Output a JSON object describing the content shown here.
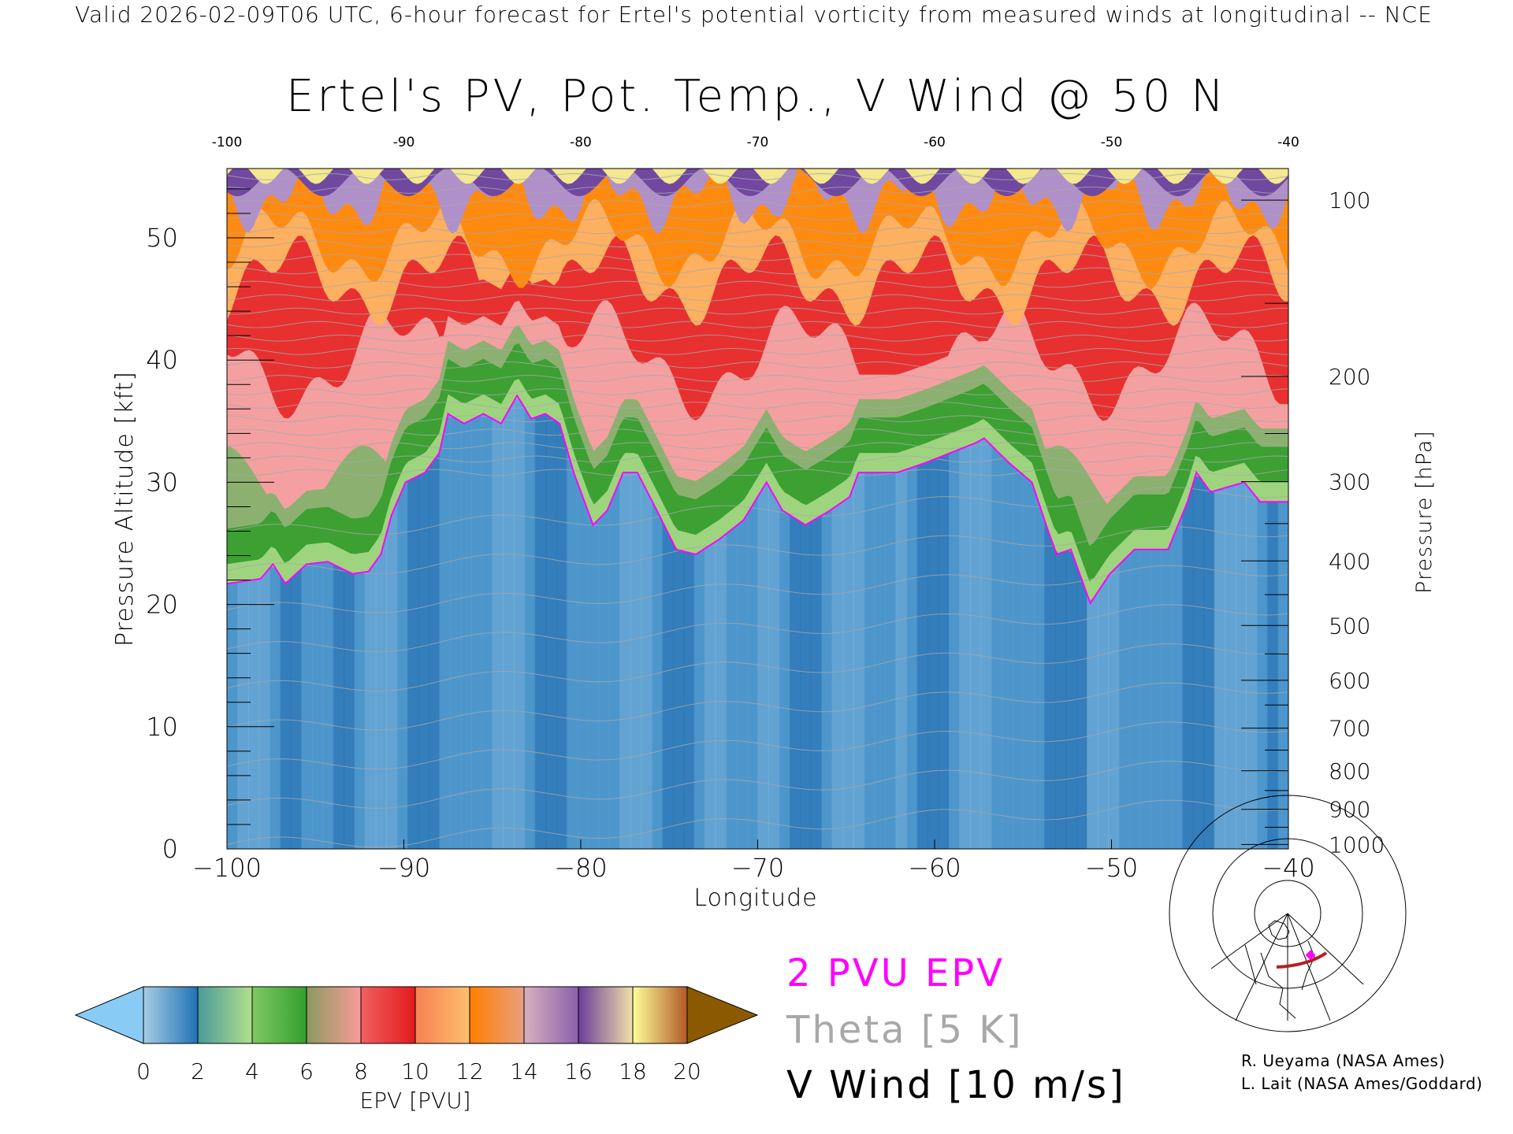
{
  "header": {
    "top_title": "Valid 2026-02-09T06 UTC, 6-hour forecast for Ertel's potential vorticity from measured winds at longitudinal -- NCE",
    "main_title": "Ertel's PV, Pot. Temp., V Wind @ 50 N"
  },
  "legend": {
    "pvu_label": "2 PVU EPV",
    "theta_label": "Theta [5 K]",
    "wind_label": "V Wind [10 m/s]"
  },
  "credits": [
    "R. Ueyama (NASA Ames)",
    "L. Lait (NASA Ames/Goddard)"
  ],
  "colors": {
    "pvu_line": "#ff00ff",
    "theta_line": "#a8a8a8",
    "wind_line": "#000000",
    "track": "#b22222"
  },
  "chart_data": {
    "type": "heatmap",
    "title": "Ertel's PV, Pot. Temp., V Wind @ 50 N",
    "xlabel": "Longitude",
    "ylabel": "Pressure Altitude [kft]",
    "y2label": "Pressure [hPa]",
    "xlim": [
      -100,
      -40
    ],
    "ylim": [
      0,
      55.7
    ],
    "x_ticks": [
      -100,
      -90,
      -80,
      -70,
      -60,
      -50,
      -40
    ],
    "x_tick_labels": [
      "−100",
      "−90",
      "−80",
      "−70",
      "−60",
      "−50",
      "−40"
    ],
    "y_ticks": [
      0,
      10,
      20,
      30,
      40,
      50
    ],
    "y2_ticks": [
      100,
      200,
      300,
      400,
      500,
      600,
      700,
      800,
      900,
      1000
    ],
    "colorbar": {
      "label": "EPV [PVU]",
      "levels": [
        0,
        2,
        4,
        6,
        8,
        10,
        12,
        14,
        16,
        18,
        20
      ],
      "tick_labels": [
        "0",
        "2",
        "4",
        "6",
        "8",
        "10",
        "12",
        "14",
        "16",
        "18",
        "20"
      ],
      "under_color": "#88ccf5",
      "over_color": "#8b5a00",
      "bands": [
        [
          "#a6cee3",
          "#2171b5"
        ],
        [
          "#4a9a9a",
          "#b2df8a"
        ],
        [
          "#80c865",
          "#33a02c"
        ],
        [
          "#8a9a60",
          "#fb9a99"
        ],
        [
          "#f06060",
          "#e31a1c"
        ],
        [
          "#f88050",
          "#fdbf6f"
        ],
        [
          "#ff7f00",
          "#e8a080"
        ],
        [
          "#d8b0c0",
          "#8a60aa"
        ],
        [
          "#6a3d9a",
          "#f0e0a8"
        ],
        [
          "#ffff99",
          "#b15928"
        ]
      ]
    },
    "tropopause_2pvu": {
      "name": "2 PVU EPV",
      "lon": [
        -100,
        -98.1,
        -97.4,
        -96.7,
        -95.5,
        -94.3,
        -92.9,
        -92.0,
        -91.3,
        -90.7,
        -89.9,
        -88.8,
        -88.0,
        -87.5,
        -86.6,
        -85.5,
        -84.5,
        -83.6,
        -82.8,
        -82.0,
        -81.2,
        -80.4,
        -79.3,
        -78.5,
        -77.6,
        -76.8,
        -75.7,
        -74.6,
        -73.5,
        -72.2,
        -70.8,
        -69.5,
        -68.6,
        -67.3,
        -65.9,
        -64.8,
        -64.3,
        -62.1,
        -60.5,
        -57.7,
        -57.2,
        -55.8,
        -54.5,
        -53.6,
        -53.1,
        -52.3,
        -51.2,
        -50.1,
        -48.7,
        -46.8,
        -45.7,
        -45.2,
        -44.4,
        -42.5,
        -41.6,
        -40
      ],
      "kft": [
        21.7,
        22.1,
        23.3,
        21.7,
        23.3,
        23.5,
        22.5,
        22.7,
        24.1,
        27.3,
        30.0,
        30.8,
        32.4,
        35.6,
        34.8,
        35.6,
        34.8,
        37.1,
        35.2,
        35.6,
        34.8,
        30.8,
        26.5,
        27.7,
        30.8,
        30.8,
        27.7,
        24.5,
        24.1,
        25.3,
        26.9,
        30.0,
        27.7,
        26.5,
        27.7,
        28.8,
        30.8,
        30.8,
        31.6,
        33.2,
        33.6,
        31.6,
        30.0,
        26.1,
        24.1,
        24.5,
        20.1,
        22.5,
        24.5,
        24.5,
        28.4,
        30.8,
        29.2,
        30.0,
        28.4,
        28.4
      ]
    }
  }
}
